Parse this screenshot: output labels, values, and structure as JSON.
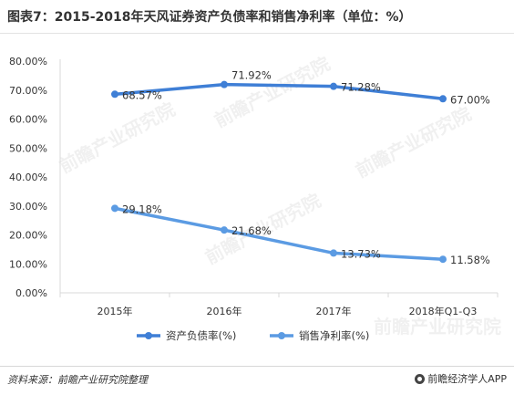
{
  "header": {
    "title": "图表7：2015-2018年天风证券资产负债率和销售净利率（单位：%）"
  },
  "footer": {
    "source": "资料来源：前瞻产业研究院整理",
    "brand": "前瞻经济学人APP"
  },
  "watermark": {
    "text": "前瞻产业研究院"
  },
  "colors": {
    "series1": "#3f7fd6",
    "series2": "#5b9be3",
    "axis": "#d9d9d9",
    "grid": "#e6e6e6"
  },
  "chart_data": {
    "type": "line",
    "title": "",
    "xlabel": "",
    "ylabel": "",
    "categories": [
      "2015年",
      "2016年",
      "2017年",
      "2018年Q1-Q3"
    ],
    "yticks": [
      "0.00%",
      "10.00%",
      "20.00%",
      "30.00%",
      "40.00%",
      "50.00%",
      "60.00%",
      "70.00%",
      "80.00%"
    ],
    "ylim": [
      0,
      80
    ],
    "grid": false,
    "legend_position": "bottom",
    "series": [
      {
        "name": "资产负债率(%)",
        "values": [
          68.57,
          71.92,
          71.28,
          67.0
        ],
        "labels": [
          "68.57%",
          "71.92%",
          "71.28%",
          "67.00%"
        ]
      },
      {
        "name": "销售净利率(%)",
        "values": [
          29.18,
          21.68,
          13.73,
          11.58
        ],
        "labels": [
          "29.18%",
          "21.68%",
          "13.73%",
          "11.58%"
        ]
      }
    ]
  }
}
